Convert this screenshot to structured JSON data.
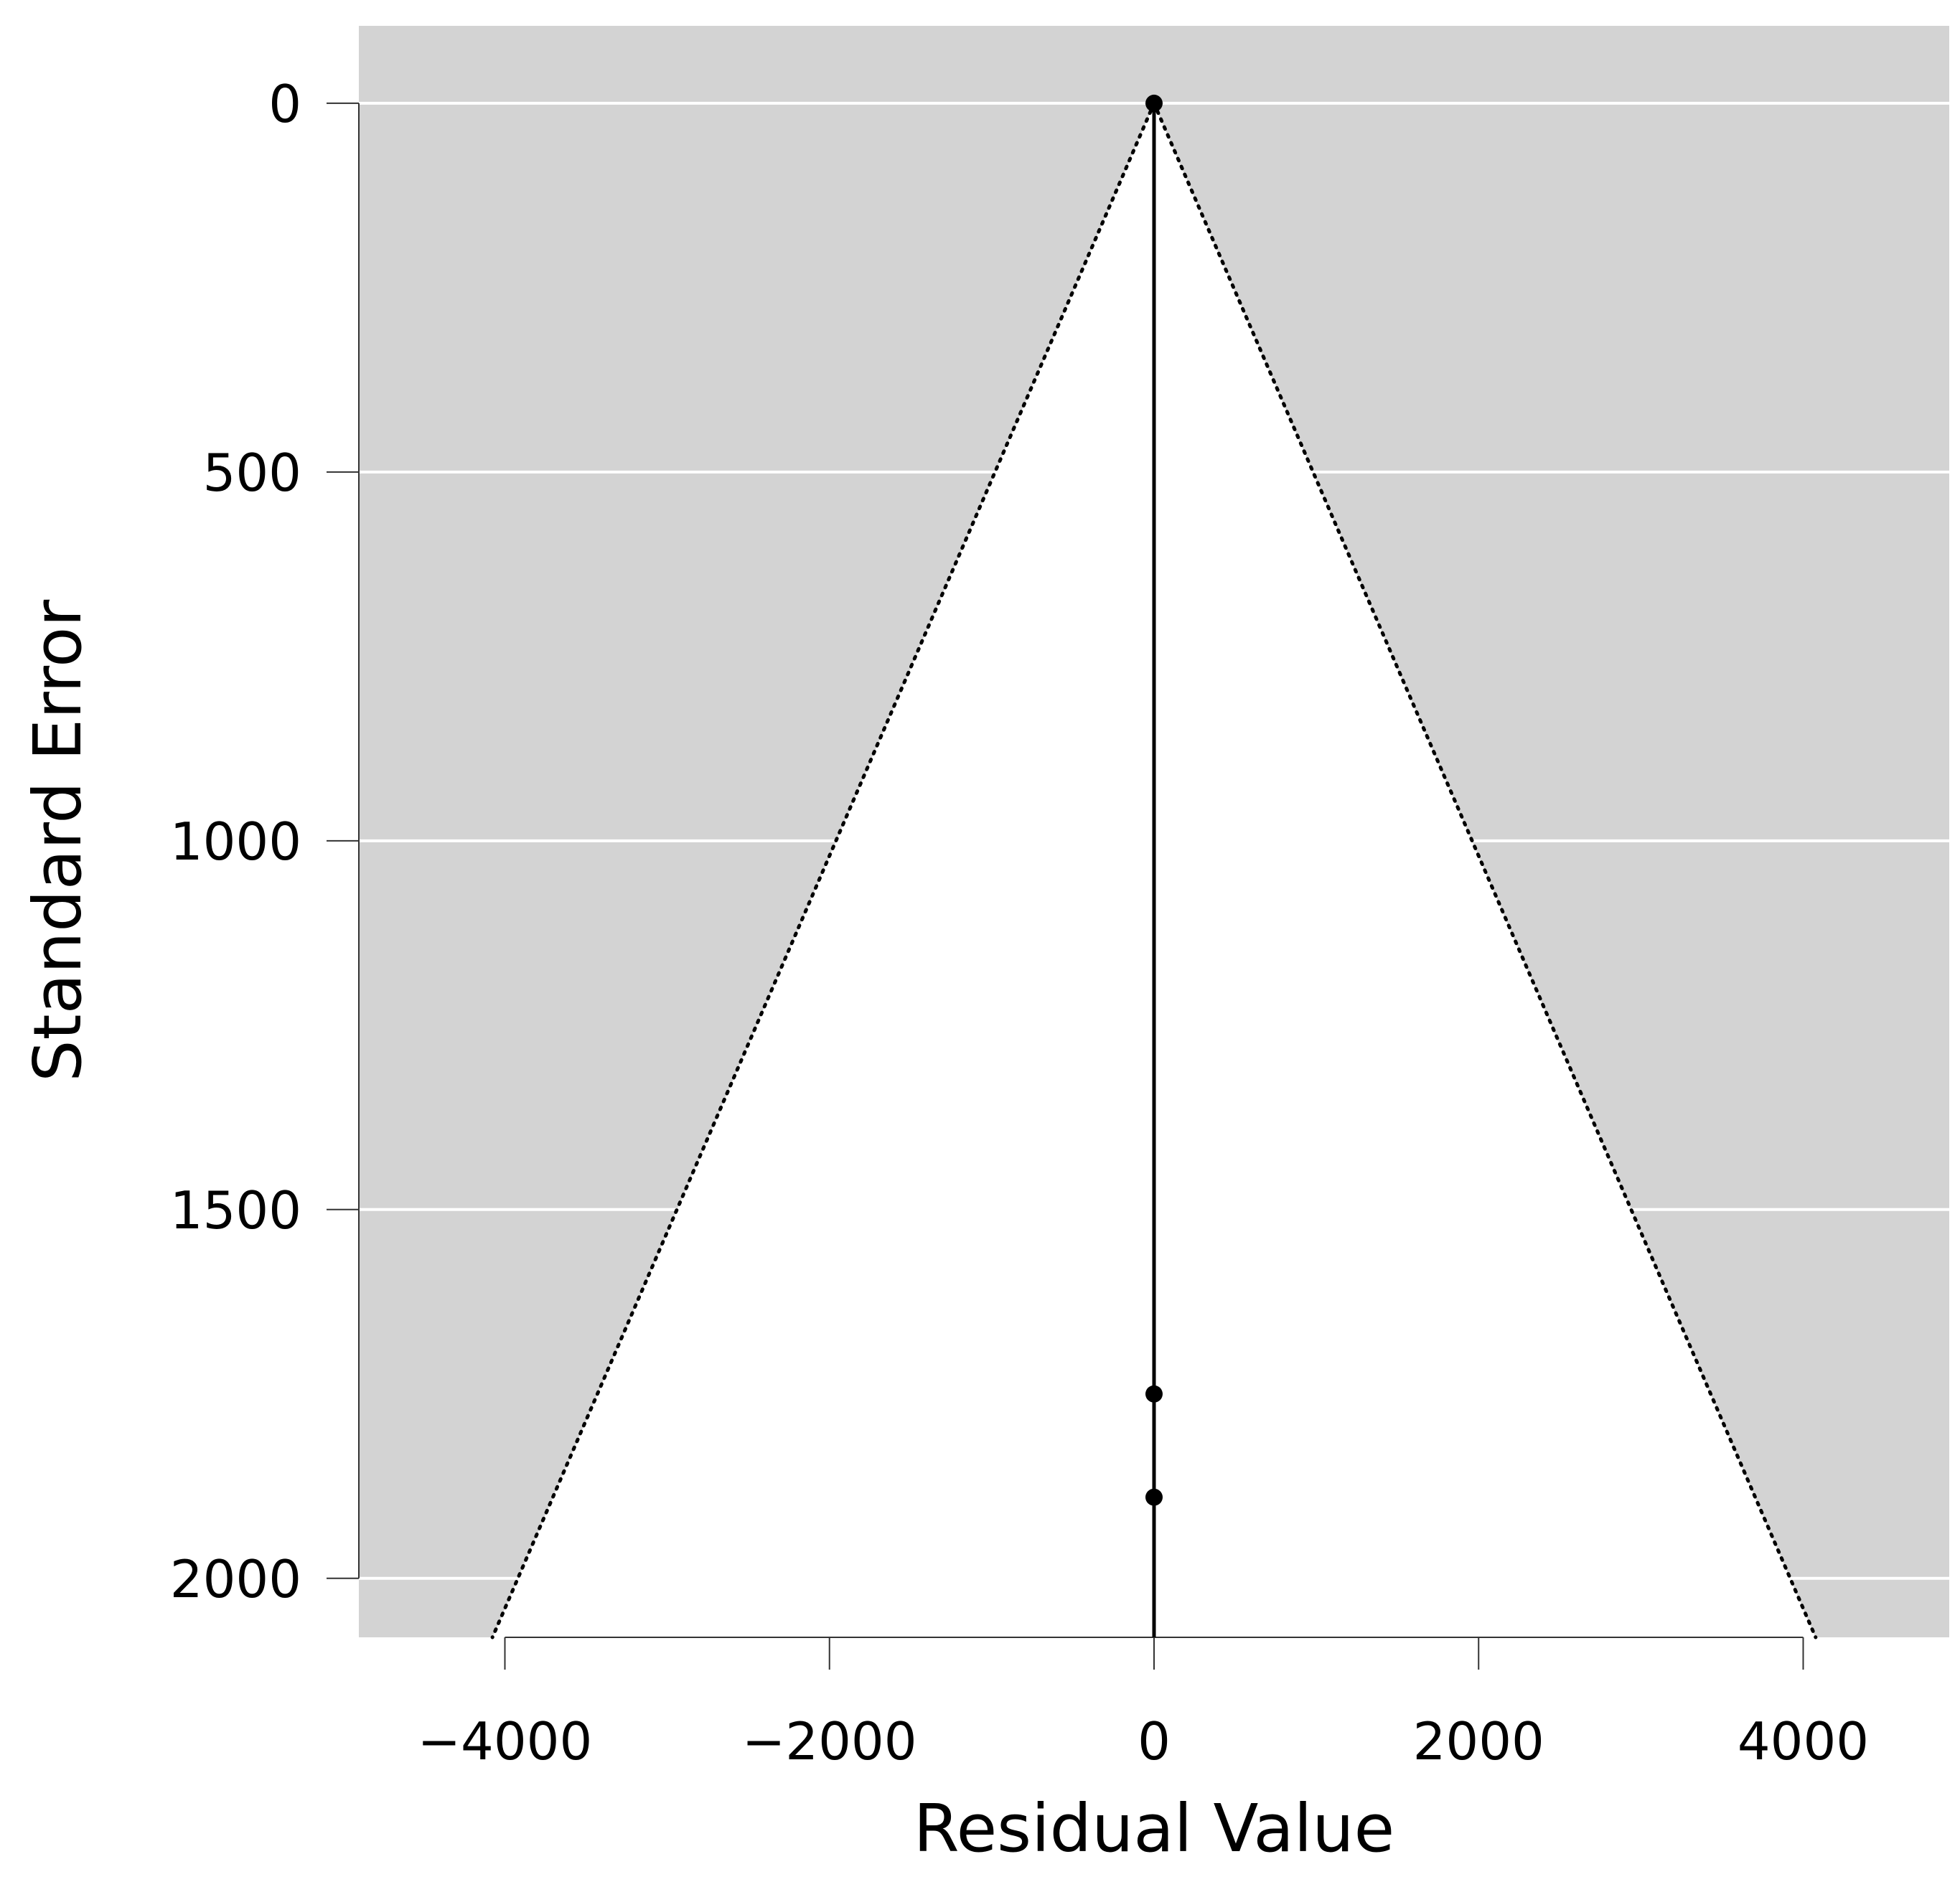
{
  "chart_data": {
    "type": "scatter",
    "subtype": "funnel",
    "title": "",
    "xlabel": "Residual Value",
    "ylabel": "Standard Error",
    "xlim": [
      -4900,
      4900
    ],
    "ylim": [
      -105,
      2080
    ],
    "y_reversed": true,
    "x_ticks": [
      {
        "value": -4000,
        "label": "−4000"
      },
      {
        "value": -2000,
        "label": "−2000"
      },
      {
        "value": 0,
        "label": "0"
      },
      {
        "value": 2000,
        "label": "2000"
      },
      {
        "value": 4000,
        "label": "4000"
      }
    ],
    "y_ticks": [
      {
        "value": 0,
        "label": "0"
      },
      {
        "value": 500,
        "label": "500"
      },
      {
        "value": 1000,
        "label": "1000"
      },
      {
        "value": 1500,
        "label": "1500"
      },
      {
        "value": 2000,
        "label": "2000"
      }
    ],
    "points": [
      {
        "x": 0,
        "y": 0
      },
      {
        "x": 0,
        "y": 1750
      },
      {
        "x": 0,
        "y": 1890
      }
    ],
    "reference_line_x": 0,
    "funnel_multiplier": 1.96,
    "grid": true,
    "colors": {
      "background_region": "#d3d3d3",
      "funnel_interior": "#ffffff",
      "gridline": "#ffffff",
      "points": "#000000",
      "lines": "#000000"
    }
  }
}
